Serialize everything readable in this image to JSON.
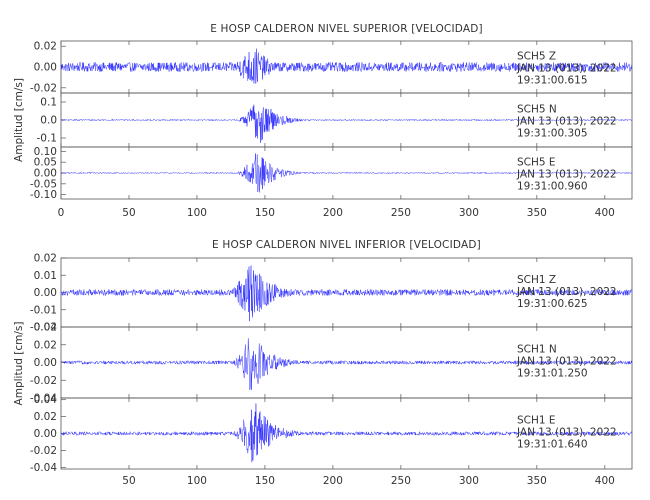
{
  "chart_data": [
    {
      "type": "line",
      "title": "E HOSP CALDERON NIVEL SUPERIOR [VELOCIDAD]",
      "ylabel": "Amplitud [cm/s]",
      "xlim": [
        0,
        420
      ],
      "x_ticks": [
        "0",
        "50",
        "100",
        "150",
        "200",
        "250",
        "300",
        "350",
        "400"
      ],
      "line_color": "#1a1aff",
      "panels": [
        {
          "station": "SCH5",
          "component": "Z",
          "date": "JAN 13 (013), 2022",
          "time": "19:31:00.615",
          "ylim": [
            -0.025,
            0.025
          ],
          "y_ticks": [
            "0.02",
            "0.00",
            "-0.02"
          ],
          "y_tick_values": [
            0.02,
            0.0,
            -0.02
          ],
          "noise_amplitude": 0.0045,
          "peak_amplitude": 0.022,
          "strong_motion_window": [
            120,
            175
          ],
          "peak_time": 142
        },
        {
          "station": "SCH5",
          "component": "N",
          "date": "JAN 13 (013), 2022",
          "time": "19:31:00.305",
          "ylim": [
            -0.15,
            0.15
          ],
          "y_ticks": [
            "0.1",
            "0.0",
            "-0.1"
          ],
          "y_tick_values": [
            0.1,
            0.0,
            -0.1
          ],
          "noise_amplitude": 0.004,
          "peak_amplitude": 0.14,
          "strong_motion_window": [
            128,
            180
          ],
          "peak_time": 146
        },
        {
          "station": "SCH5",
          "component": "E",
          "date": "JAN 13 (013), 2022",
          "time": "19:31:00.960",
          "ylim": [
            -0.12,
            0.12
          ],
          "y_ticks": [
            "0.10",
            "0.05",
            "0.00",
            "-0.05",
            "-0.10"
          ],
          "y_tick_values": [
            0.1,
            0.05,
            0.0,
            -0.05,
            -0.1
          ],
          "noise_amplitude": 0.003,
          "peak_amplitude": 0.11,
          "strong_motion_window": [
            128,
            178
          ],
          "peak_time": 145
        }
      ]
    },
    {
      "type": "line",
      "title": "E HOSP CALDERON NIVEL INFERIOR [VELOCIDAD]",
      "ylabel": "Amplitud [cm/s]",
      "xlim": [
        0,
        420
      ],
      "x_ticks": [
        "50",
        "100",
        "150",
        "200",
        "250",
        "300",
        "350",
        "400"
      ],
      "line_color": "#1a1aff",
      "panels": [
        {
          "station": "SCH1",
          "component": "Z",
          "date": "JAN 13 (013), 2022",
          "time": "19:31:00.625",
          "ylim": [
            -0.02,
            0.02
          ],
          "y_ticks": [
            "0.02",
            "0.01",
            "0.00",
            "-0.01",
            "-0.02"
          ],
          "y_tick_values": [
            0.02,
            0.01,
            0.0,
            -0.01,
            -0.02
          ],
          "noise_amplitude": 0.0018,
          "peak_amplitude": 0.019,
          "strong_motion_window": [
            122,
            182
          ],
          "peak_time": 140
        },
        {
          "station": "SCH1",
          "component": "N",
          "date": "JAN 13 (013), 2022",
          "time": "19:31:01.250",
          "ylim": [
            -0.04,
            0.04
          ],
          "y_ticks": [
            "0.04",
            "0.02",
            "0.00",
            "-0.02",
            "-0.04"
          ],
          "y_tick_values": [
            0.04,
            0.02,
            0.0,
            -0.02,
            -0.04
          ],
          "noise_amplitude": 0.002,
          "peak_amplitude": 0.036,
          "strong_motion_window": [
            125,
            180
          ],
          "peak_time": 140
        },
        {
          "station": "SCH1",
          "component": "E",
          "date": "JAN 13 (013), 2022",
          "time": "19:31:01.640",
          "ylim": [
            -0.042,
            0.042
          ],
          "y_ticks": [
            "0.04",
            "0.02",
            "0.00",
            "-0.02",
            "-0.04"
          ],
          "y_tick_values": [
            0.04,
            0.02,
            0.0,
            -0.02,
            -0.04
          ],
          "noise_amplitude": 0.0022,
          "peak_amplitude": 0.04,
          "strong_motion_window": [
            125,
            180
          ],
          "peak_time": 142
        }
      ]
    }
  ]
}
